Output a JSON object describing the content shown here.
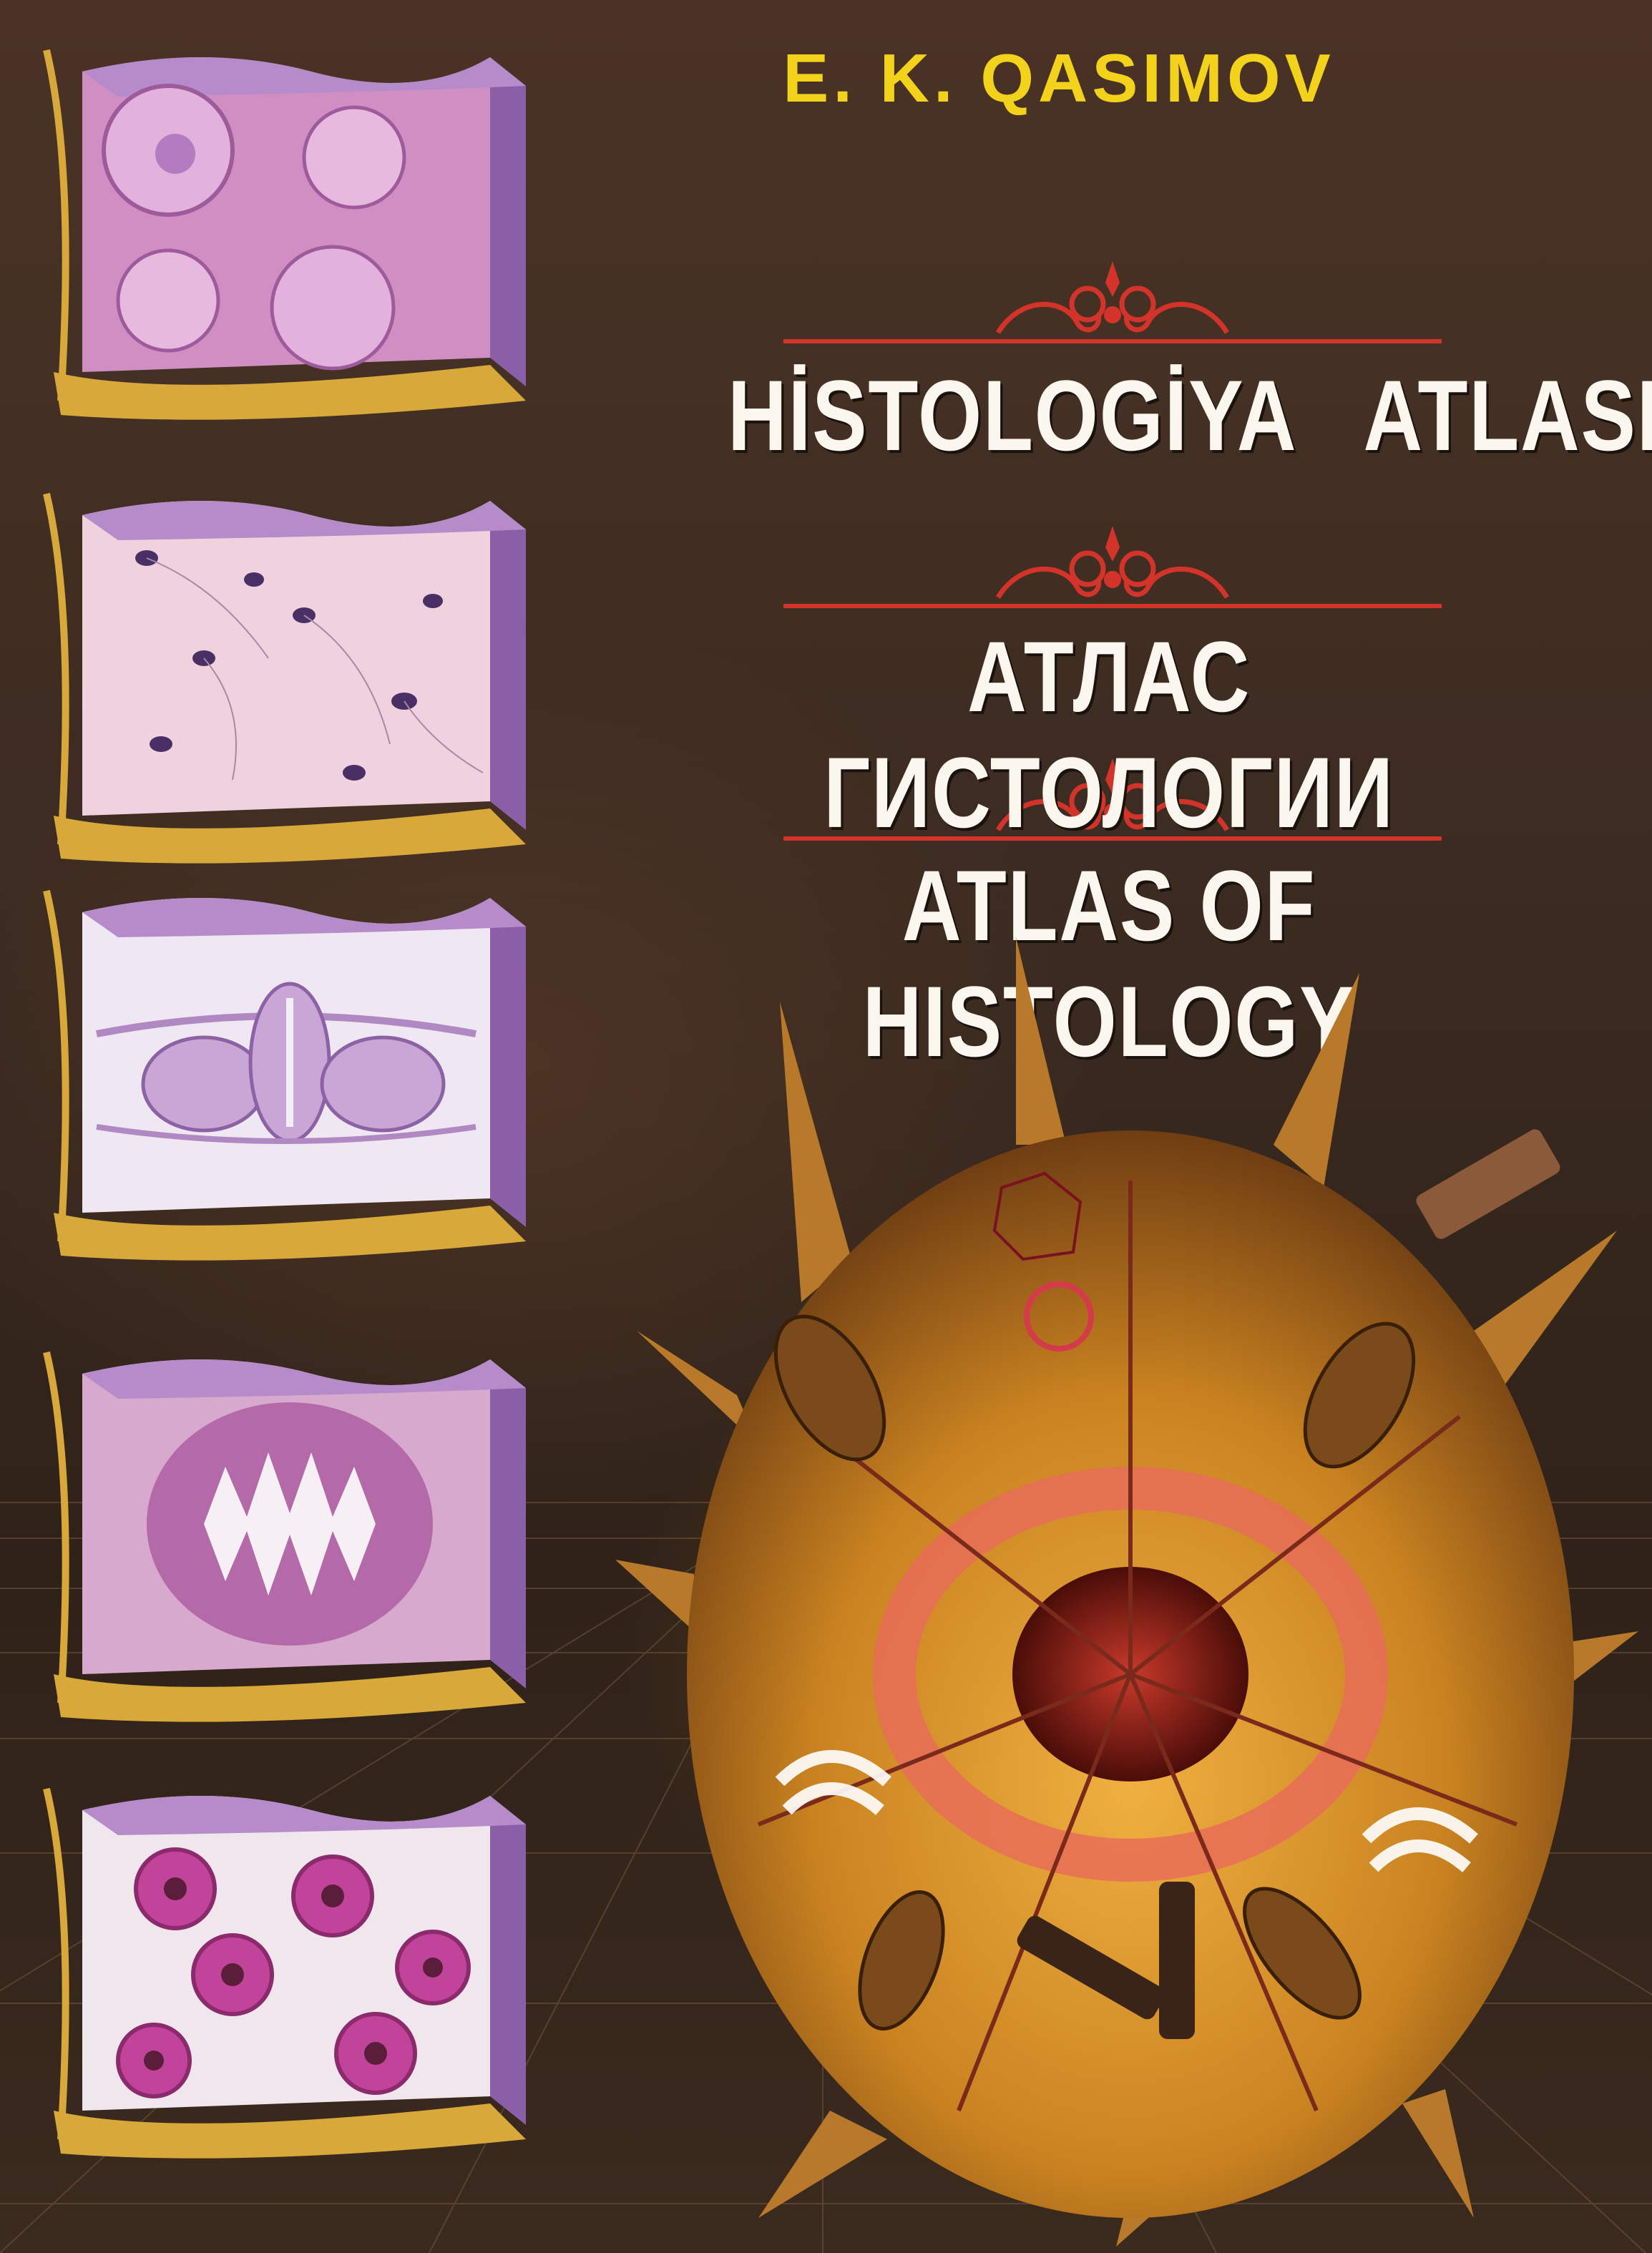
{
  "cover": {
    "author": "E. K. QASIMOV",
    "titles": {
      "uzbek": "HİSTOLOGİYA   ATLASI",
      "russian": "АТЛАС ГИСТОЛОГИИ",
      "english": "ATLAS OF HISTOLOGY"
    }
  },
  "colors": {
    "author_yellow": "#f2d21a",
    "title_white": "#fbf7ef",
    "ornament_red": "#d4332a",
    "background_brown": "#3d2c22",
    "cell_orange": "#c98220"
  },
  "panels": [
    {
      "icon": "oocyte-tissue-block"
    },
    {
      "icon": "sperm-cells-block"
    },
    {
      "icon": "neural-tube-block"
    },
    {
      "icon": "intestinal-villi-block"
    },
    {
      "icon": "hair-follicle-block"
    }
  ],
  "illustration": {
    "icon": "animal-cell-cutaway"
  }
}
